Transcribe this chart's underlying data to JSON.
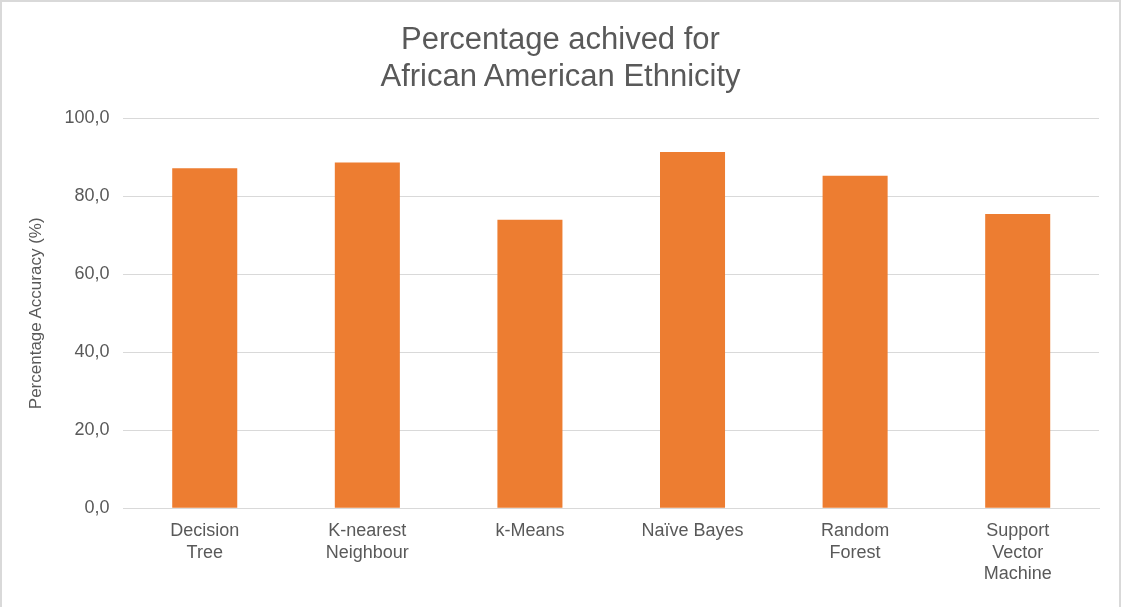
{
  "chart_data": {
    "type": "bar",
    "title": "Percentage achived for\nAfrican American Ethnicity",
    "ylabel": "Percentage Accuracy (%)",
    "categories": [
      "Decision Tree",
      "K-nearest Neighbour",
      "k-Means",
      "Naïve Bayes",
      "Random Forest",
      "Support Vector Machine"
    ],
    "values": [
      87.2,
      88.7,
      74.0,
      91.4,
      85.3,
      75.5
    ],
    "color": "#ed7d31",
    "ylim": [
      0,
      100
    ],
    "yticks": [
      {
        "value": 0,
        "label": "0,0"
      },
      {
        "value": 20,
        "label": "20,0"
      },
      {
        "value": 40,
        "label": "40,0"
      },
      {
        "value": 60,
        "label": "60,0"
      },
      {
        "value": 80,
        "label": "80,0"
      },
      {
        "value": 100,
        "label": "100,0"
      }
    ],
    "grid": "y",
    "legend": false
  }
}
